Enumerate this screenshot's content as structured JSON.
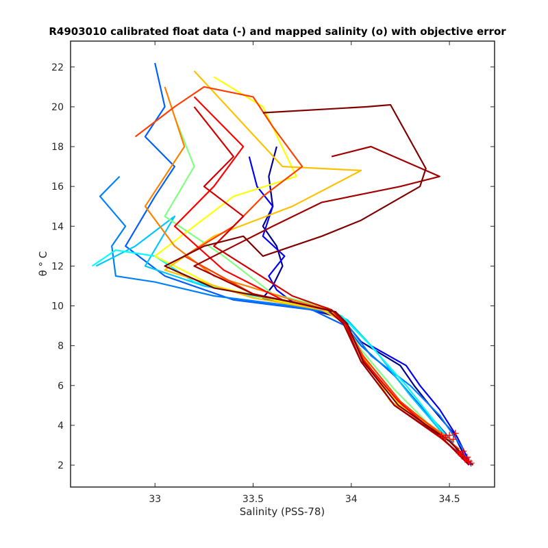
{
  "chart_data": {
    "type": "line",
    "title": "R4903010 calibrated float data (-) and mapped salinity (o) with objective error",
    "xlabel": "Salinity (PSS-78)",
    "ylabel": "θ ° C",
    "xlim": [
      32.57,
      34.73
    ],
    "ylim": [
      0.9,
      23.3
    ],
    "xticks": [
      33,
      33.5,
      34,
      34.5
    ],
    "yticks": [
      2,
      4,
      6,
      8,
      10,
      12,
      14,
      16,
      18,
      20,
      22
    ],
    "grid": false,
    "legend": "none",
    "colormap": "jet (profile number order, blue → dark red)",
    "colormap_stops": [
      "#00008f",
      "#0000ff",
      "#0080ff",
      "#00ffff",
      "#80ff80",
      "#ffff00",
      "#ff8000",
      "#ff0000",
      "#800000"
    ],
    "series": [
      {
        "color": "#00008f",
        "x": [
          33.62,
          33.58,
          33.6,
          33.55,
          33.62,
          33.65,
          33.6,
          33.55,
          33.72,
          33.95,
          34.05,
          34.25,
          34.32,
          34.4,
          34.52,
          34.6
        ],
        "y": [
          18.0,
          16.5,
          15.0,
          14.0,
          13.0,
          12.0,
          11.0,
          10.4,
          10.0,
          9.4,
          8.2,
          7.0,
          6.0,
          5.0,
          3.6,
          2.0
        ]
      },
      {
        "color": "#0000ff",
        "x": [
          33.48,
          33.52,
          33.6,
          33.55,
          33.66,
          33.58,
          33.62,
          33.7,
          33.95,
          34.1,
          34.28,
          34.35,
          34.45,
          34.54,
          34.61
        ],
        "y": [
          17.5,
          16.0,
          15.0,
          13.5,
          12.5,
          11.5,
          10.8,
          10.2,
          9.5,
          8.0,
          7.0,
          6.0,
          4.8,
          3.4,
          2.0
        ]
      },
      {
        "color": "#0060ff",
        "x": [
          33.0,
          33.05,
          32.95,
          33.1,
          33.0,
          32.85,
          33.05,
          33.4,
          33.8,
          33.97,
          34.05,
          34.22,
          34.35,
          34.48,
          34.58
        ],
        "y": [
          22.2,
          20.0,
          18.5,
          17.0,
          15.5,
          13.0,
          11.5,
          10.3,
          9.8,
          9.0,
          8.0,
          6.5,
          5.0,
          3.6,
          2.2
        ]
      },
      {
        "color": "#0080ff",
        "x": [
          32.82,
          32.72,
          32.85,
          32.78,
          32.8,
          33.0,
          33.3,
          33.7,
          33.92,
          34.0,
          34.1,
          34.3,
          34.45,
          34.57
        ],
        "y": [
          16.5,
          15.5,
          14.0,
          13.0,
          11.5,
          11.2,
          10.5,
          10.0,
          9.6,
          8.8,
          7.5,
          6.0,
          4.5,
          2.8
        ]
      },
      {
        "color": "#00c8ff",
        "x": [
          32.7,
          32.9,
          33.1,
          32.95,
          33.25,
          33.6,
          33.85,
          33.98,
          34.12,
          34.3,
          34.5
        ],
        "y": [
          12.0,
          13.0,
          14.5,
          12.0,
          11.0,
          10.4,
          9.8,
          9.3,
          7.8,
          5.5,
          3.2
        ]
      },
      {
        "color": "#00ffff",
        "x": [
          32.68,
          32.8,
          33.0,
          33.2,
          33.5,
          33.8,
          33.95,
          34.08,
          34.28,
          34.48
        ],
        "y": [
          12.0,
          12.8,
          12.5,
          11.2,
          10.5,
          10.0,
          9.5,
          8.2,
          6.0,
          3.5
        ]
      },
      {
        "color": "#80ff80",
        "x": [
          33.1,
          33.2,
          33.05,
          33.35,
          33.6,
          33.88,
          33.96,
          34.05,
          34.22,
          34.46
        ],
        "y": [
          19.5,
          17.0,
          14.5,
          12.5,
          10.6,
          9.9,
          9.2,
          7.8,
          5.8,
          3.4
        ]
      },
      {
        "color": "#ffff00",
        "x": [
          33.3,
          33.55,
          33.72,
          33.4,
          33.2,
          33.0,
          33.3,
          33.65,
          33.9,
          33.98,
          34.08,
          34.25,
          34.45
        ],
        "y": [
          21.5,
          20.0,
          16.5,
          15.5,
          14.0,
          12.5,
          11.0,
          10.2,
          9.7,
          9.0,
          7.0,
          5.0,
          3.5
        ]
      },
      {
        "color": "#ffc000",
        "x": [
          33.2,
          33.65,
          34.05,
          33.7,
          33.3,
          33.05,
          33.5,
          33.85,
          33.96,
          34.06,
          34.2,
          34.46
        ],
        "y": [
          21.8,
          17.0,
          16.8,
          15.0,
          13.5,
          11.8,
          10.4,
          9.8,
          9.2,
          7.5,
          5.2,
          3.6
        ]
      },
      {
        "color": "#ff8000",
        "x": [
          33.05,
          33.15,
          32.95,
          33.1,
          33.3,
          33.7,
          33.92,
          33.98,
          34.08,
          34.26,
          34.52
        ],
        "y": [
          21.0,
          18.0,
          15.0,
          13.0,
          11.5,
          10.3,
          9.7,
          9.0,
          7.0,
          5.0,
          3.2
        ]
      },
      {
        "color": "#ff4000",
        "x": [
          32.9,
          33.1,
          33.25,
          33.5,
          33.6,
          33.75,
          33.55,
          33.4,
          33.15,
          33.5,
          33.88,
          33.97,
          34.06,
          34.25,
          34.55
        ],
        "y": [
          18.5,
          20.0,
          21.0,
          20.5,
          19.0,
          17.0,
          15.5,
          14.0,
          12.5,
          10.6,
          9.8,
          9.1,
          7.5,
          5.2,
          2.8
        ]
      },
      {
        "color": "#ff0000",
        "x": [
          33.2,
          33.45,
          33.3,
          33.1,
          33.35,
          33.65,
          33.92,
          33.98,
          34.06,
          34.24,
          34.5,
          34.6
        ],
        "y": [
          20.5,
          18.0,
          16.0,
          14.0,
          11.8,
          10.3,
          9.7,
          9.0,
          7.3,
          5.2,
          3.0,
          2.2
        ]
      },
      {
        "color": "#d00000",
        "x": [
          33.2,
          33.4,
          33.25,
          33.45,
          33.3,
          33.7,
          33.9,
          33.97,
          34.05,
          34.22,
          34.48,
          34.6
        ],
        "y": [
          20.0,
          17.5,
          16.0,
          14.5,
          13.0,
          10.5,
          9.8,
          9.1,
          7.2,
          5.0,
          3.2,
          2.1
        ]
      },
      {
        "color": "#a00000",
        "x": [
          33.9,
          34.1,
          34.45,
          34.25,
          33.85,
          33.6,
          33.4,
          33.2,
          33.5,
          33.88,
          33.96,
          34.05,
          34.22,
          34.46,
          34.6
        ],
        "y": [
          17.5,
          18.0,
          16.5,
          16.0,
          15.2,
          14.0,
          13.0,
          12.0,
          10.6,
          9.8,
          9.1,
          7.2,
          5.0,
          3.4,
          2.0
        ]
      },
      {
        "color": "#800000",
        "x": [
          33.55,
          34.08,
          34.2,
          34.38,
          34.35,
          34.05,
          33.85,
          33.55,
          33.45,
          33.25,
          33.05,
          33.3,
          33.7,
          33.92,
          33.98,
          34.06,
          34.24,
          34.5,
          34.62
        ],
        "y": [
          19.7,
          20.0,
          20.1,
          16.9,
          16.0,
          14.3,
          13.5,
          12.5,
          13.5,
          13.0,
          12.0,
          10.9,
          10.2,
          9.7,
          9.1,
          7.2,
          5.0,
          3.2,
          2.0
        ]
      }
    ],
    "mapped_markers": {
      "marker": "+",
      "color": "#ff0000",
      "x": [
        34.46,
        34.48,
        34.5,
        34.52,
        34.53,
        34.55,
        34.56,
        34.57,
        34.58,
        34.59,
        34.6,
        34.61
      ],
      "y": [
        3.5,
        3.4,
        3.5,
        3.3,
        3.6,
        2.6,
        2.5,
        2.7,
        2.3,
        2.4,
        2.2,
        2.1
      ]
    }
  }
}
